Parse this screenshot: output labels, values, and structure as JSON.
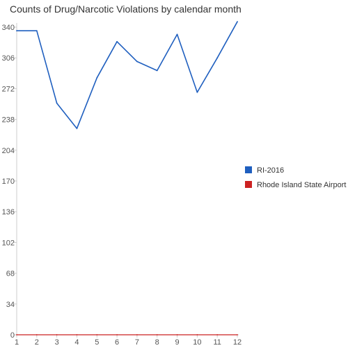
{
  "chart_data": {
    "type": "line",
    "title": "Counts of Drug/Narcotic Violations by calendar month",
    "xlabel": "",
    "ylabel": "",
    "x": [
      1,
      2,
      3,
      4,
      5,
      6,
      7,
      8,
      9,
      10,
      11,
      12
    ],
    "ylim": [
      0,
      340
    ],
    "yticks": [
      0,
      34,
      68,
      102,
      136,
      170,
      204,
      238,
      272,
      306,
      340
    ],
    "grid": false,
    "legend_position": "right",
    "series": [
      {
        "name": "RI-2016",
        "color": "#1f5fbf",
        "values": [
          336,
          336,
          256,
          228,
          284,
          324,
          302,
          292,
          332,
          268,
          306,
          346
        ]
      },
      {
        "name": "Rhode Island State Airport",
        "color": "#cc2222",
        "values": [
          0,
          0,
          0,
          0,
          0,
          0,
          0,
          0,
          0,
          0,
          0,
          0
        ]
      }
    ]
  }
}
